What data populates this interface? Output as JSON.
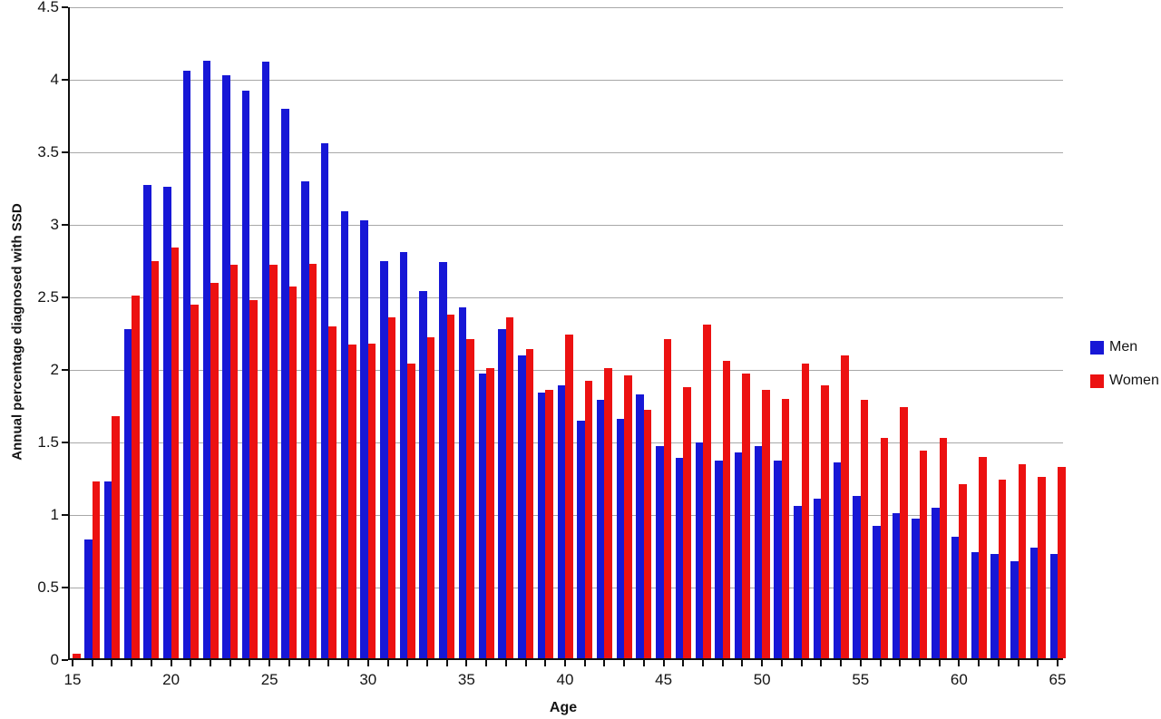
{
  "chart_data": {
    "type": "bar",
    "title": "",
    "xlabel": "Age",
    "ylabel": "Annual percentage diagnosed with SSD",
    "ylim": [
      0,
      4.5
    ],
    "yticks": [
      0,
      0.5,
      1,
      1.5,
      2,
      2.5,
      3,
      3.5,
      4,
      4.5
    ],
    "ytick_labels": [
      "0",
      "0.5",
      "1",
      "1.5",
      "2",
      "2.5",
      "3",
      "3.5",
      "4",
      "4.5"
    ],
    "xticks_labeled": [
      15,
      20,
      25,
      30,
      35,
      40,
      45,
      50,
      55,
      60,
      65
    ],
    "grid": "horizontal",
    "legend_position": "right",
    "categories": [
      15,
      16,
      17,
      18,
      19,
      20,
      21,
      22,
      23,
      24,
      25,
      26,
      27,
      28,
      29,
      30,
      31,
      32,
      33,
      34,
      35,
      36,
      37,
      38,
      39,
      40,
      41,
      42,
      43,
      44,
      45,
      46,
      47,
      48,
      49,
      50,
      51,
      52,
      53,
      54,
      55,
      56,
      57,
      58,
      59,
      60,
      61,
      62,
      63,
      64,
      65
    ],
    "series": [
      {
        "name": "Men",
        "color": "#1717d6",
        "values": [
          0,
          0.82,
          1.22,
          2.27,
          3.26,
          3.25,
          4.05,
          4.12,
          4.02,
          3.91,
          4.11,
          3.79,
          3.29,
          3.55,
          3.08,
          3.02,
          2.74,
          2.8,
          2.53,
          2.73,
          2.42,
          1.96,
          2.27,
          2.09,
          1.83,
          1.88,
          1.64,
          1.78,
          1.65,
          1.82,
          1.46,
          1.38,
          1.49,
          1.36,
          1.42,
          1.46,
          1.36,
          1.05,
          1.1,
          1.35,
          1.12,
          0.91,
          1.0,
          0.96,
          1.04,
          0.84,
          0.73,
          0.72,
          0.67,
          0.76,
          0.72
        ]
      },
      {
        "name": "Women",
        "color": "#ec1111",
        "values": [
          0.03,
          1.22,
          1.67,
          2.5,
          2.74,
          2.83,
          2.44,
          2.59,
          2.71,
          2.47,
          2.71,
          2.56,
          2.72,
          2.29,
          2.16,
          2.17,
          2.35,
          2.03,
          2.21,
          2.37,
          2.2,
          2.0,
          2.35,
          2.13,
          1.85,
          2.23,
          1.91,
          2.0,
          1.95,
          1.71,
          2.2,
          1.87,
          2.3,
          2.05,
          1.96,
          1.85,
          1.79,
          2.03,
          1.88,
          2.09,
          1.78,
          1.52,
          1.73,
          1.43,
          1.52,
          1.2,
          1.39,
          1.23,
          1.34,
          1.25,
          1.32
        ]
      }
    ]
  },
  "axes": {
    "y_title": "Annual percentage diagnosed with SSD",
    "x_title": "Age"
  },
  "legend": {
    "men_label": "Men",
    "women_label": "Women"
  },
  "colors": {
    "men": "#1717d6",
    "women": "#ec1111",
    "gridline": "#a8a8a8",
    "axis": "#0f0f0f",
    "text": "#141414",
    "background": "#ffffff"
  }
}
